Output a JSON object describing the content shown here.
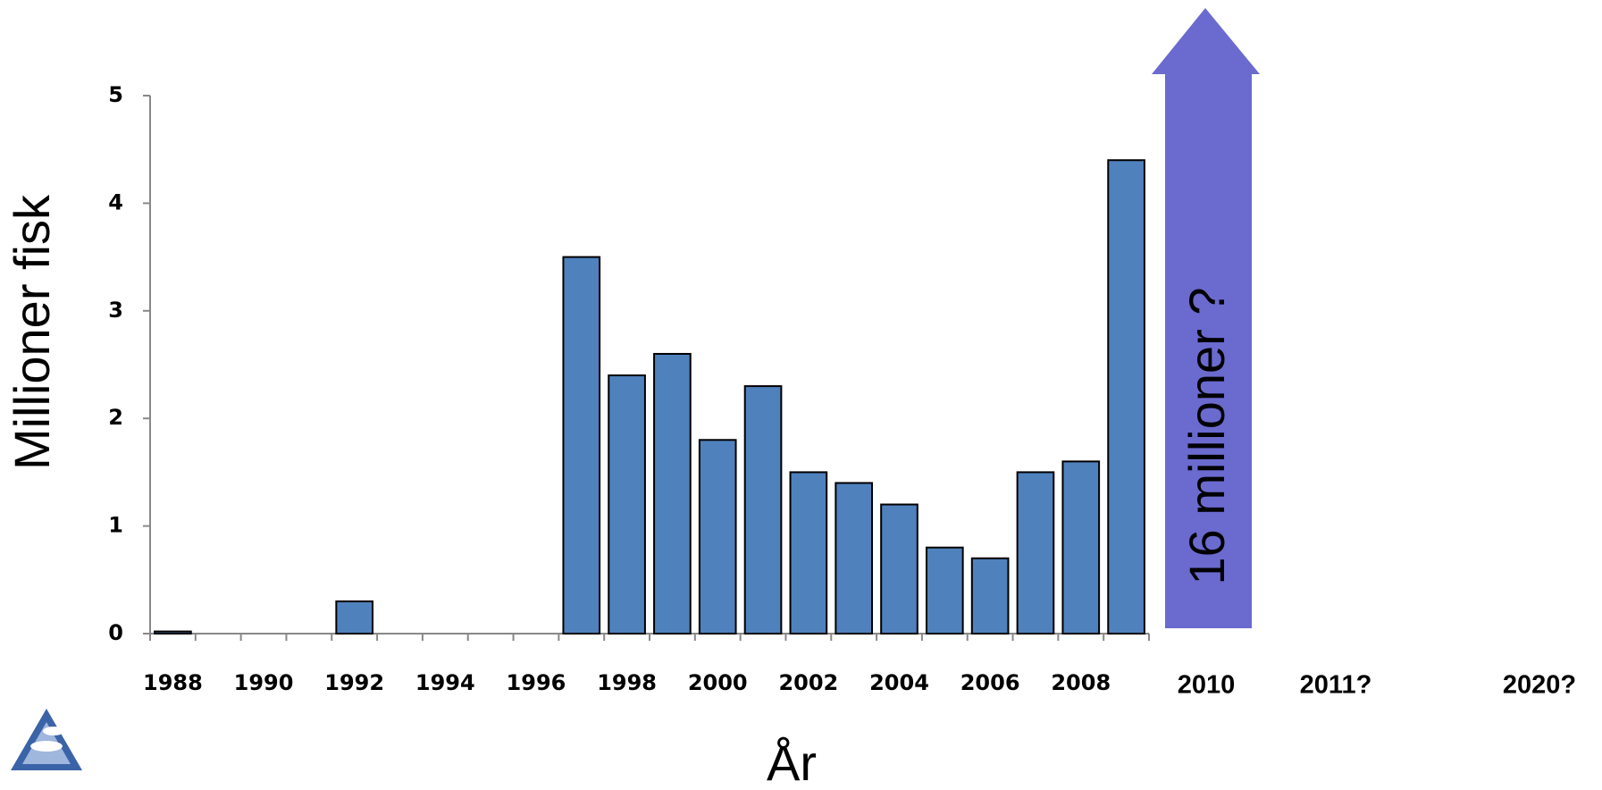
{
  "chart_data": {
    "type": "bar",
    "y_label": "Millioner fisk",
    "x_label": "År",
    "categories": [
      "1988",
      null,
      "1990",
      null,
      "1992",
      null,
      "1994",
      null,
      "1996",
      null,
      "1998",
      null,
      "2000",
      null,
      "2002",
      null,
      "2004",
      null,
      "2006",
      null,
      "2008",
      null
    ],
    "values": [
      0.02,
      0,
      0,
      0,
      0.3,
      0,
      0,
      0,
      0,
      3.5,
      2.4,
      2.6,
      1.8,
      2.3,
      1.5,
      1.4,
      1.2,
      0.8,
      0.7,
      1.5,
      1.6,
      4.4
    ],
    "color": "#4f81bd",
    "ylim": [
      0,
      5
    ],
    "yticks": [
      0,
      1,
      2,
      3,
      4,
      5
    ],
    "grid": false,
    "annotations": [
      "16 millioner ?",
      "2010",
      "2011?",
      "2020?"
    ]
  }
}
